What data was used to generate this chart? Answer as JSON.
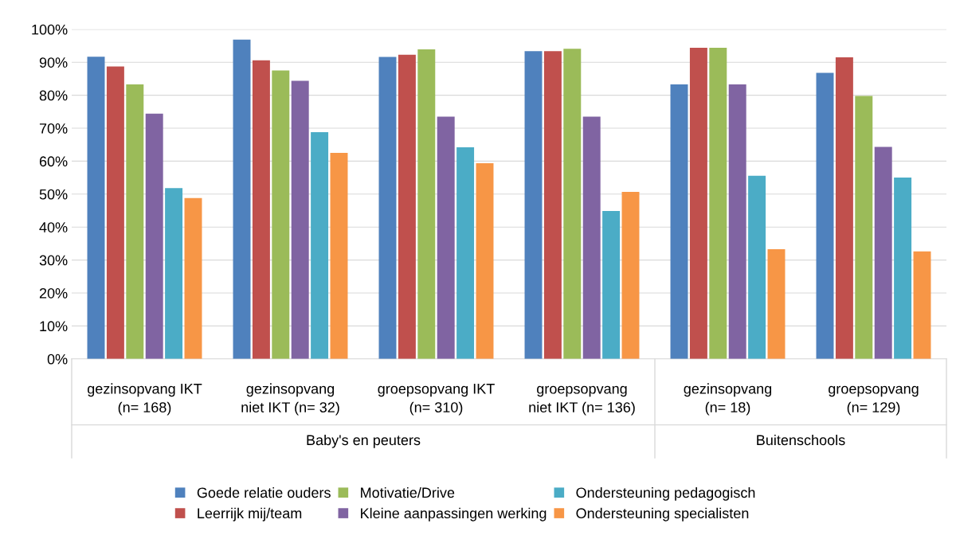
{
  "chart_data": {
    "type": "bar",
    "categories": [
      "gezinsopvang IKT\n(n= 168)",
      "gezinsopvang\nniet IKT (n= 32)",
      "groepsopvang IKT\n(n= 310)",
      "groepsopvang\nniet IKT (n= 136)",
      "gezinsopvang\n(n= 18)",
      "groepsopvang\n(n= 129)"
    ],
    "series": [
      {
        "name": "Goede relatie ouders",
        "color": "#4f81bd",
        "values": [
          91.7,
          96.9,
          91.6,
          93.4,
          83.3,
          86.8
        ]
      },
      {
        "name": "Leerrijk mij/team",
        "color": "#c0504d",
        "values": [
          88.7,
          90.6,
          92.3,
          93.4,
          94.4,
          91.5
        ]
      },
      {
        "name": "Motivatie/Drive",
        "color": "#9bbb59",
        "values": [
          83.3,
          87.5,
          93.9,
          94.1,
          94.4,
          79.8
        ]
      },
      {
        "name": "Kleine aanpassingen werking",
        "color": "#8064a2",
        "values": [
          74.4,
          84.4,
          73.5,
          73.5,
          83.3,
          64.3
        ]
      },
      {
        "name": "Ondersteuning pedagogisch",
        "color": "#4bacc6",
        "values": [
          51.8,
          68.8,
          64.2,
          44.9,
          55.6,
          55.0
        ]
      },
      {
        "name": "Ondersteuning specialisten",
        "color": "#f79646",
        "values": [
          48.8,
          62.5,
          59.4,
          50.7,
          33.3,
          32.6
        ]
      }
    ],
    "ylim": [
      0,
      100
    ],
    "yticks": [
      {
        "value": 0,
        "label": "0%"
      },
      {
        "value": 10,
        "label": "10%"
      },
      {
        "value": 20,
        "label": "20%"
      },
      {
        "value": 30,
        "label": "30%"
      },
      {
        "value": 40,
        "label": "40%"
      },
      {
        "value": 50,
        "label": "50%"
      },
      {
        "value": 60,
        "label": "60%"
      },
      {
        "value": 70,
        "label": "70%"
      },
      {
        "value": 80,
        "label": "80%"
      },
      {
        "value": 90,
        "label": "90%"
      },
      {
        "value": 100,
        "label": "100%"
      }
    ],
    "grid": "y",
    "legend": "bottom",
    "annotations": [
      "Baby's en peuters",
      "Buitenschools"
    ]
  }
}
